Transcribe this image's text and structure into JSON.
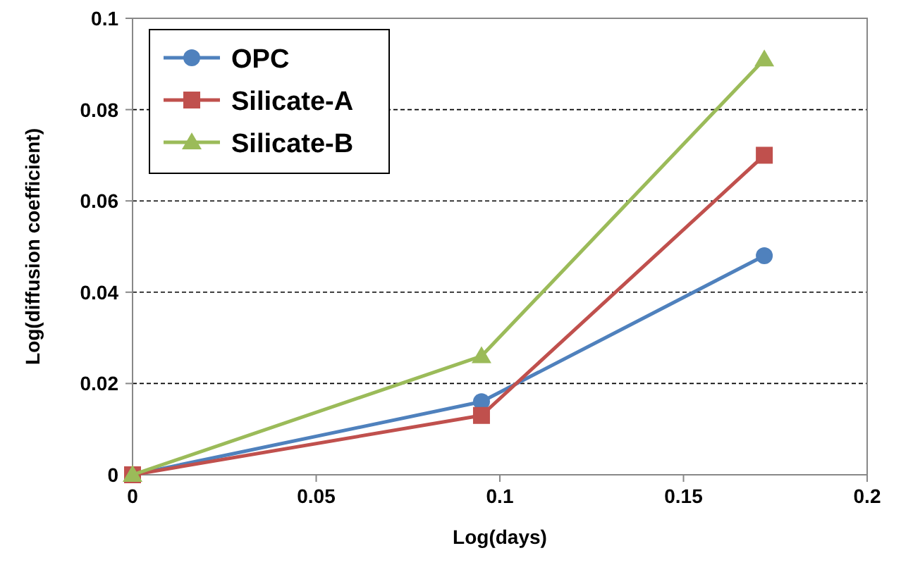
{
  "chart_data": {
    "type": "line",
    "xlabel": "Log(days)",
    "ylabel": "Log(diffusion coefficient)",
    "x": [
      0,
      0.095,
      0.172
    ],
    "xlim": [
      0,
      0.2
    ],
    "xticks": [
      0,
      0.05,
      0.1,
      0.15,
      0.2
    ],
    "ylim": [
      0,
      0.1
    ],
    "yticks": [
      0,
      0.02,
      0.04,
      0.06,
      0.08,
      0.1
    ],
    "grid": "y",
    "legend": "top left",
    "series": [
      {
        "name": "OPC",
        "color": "#4f81bd",
        "marker": "circle",
        "values": [
          0,
          0.016,
          0.048
        ]
      },
      {
        "name": "Silicate-A",
        "color": "#c0504d",
        "marker": "square",
        "values": [
          0,
          0.013,
          0.07
        ]
      },
      {
        "name": "Silicate-B",
        "color": "#9bbb59",
        "marker": "triangle",
        "values": [
          0,
          0.026,
          0.091
        ]
      }
    ]
  }
}
